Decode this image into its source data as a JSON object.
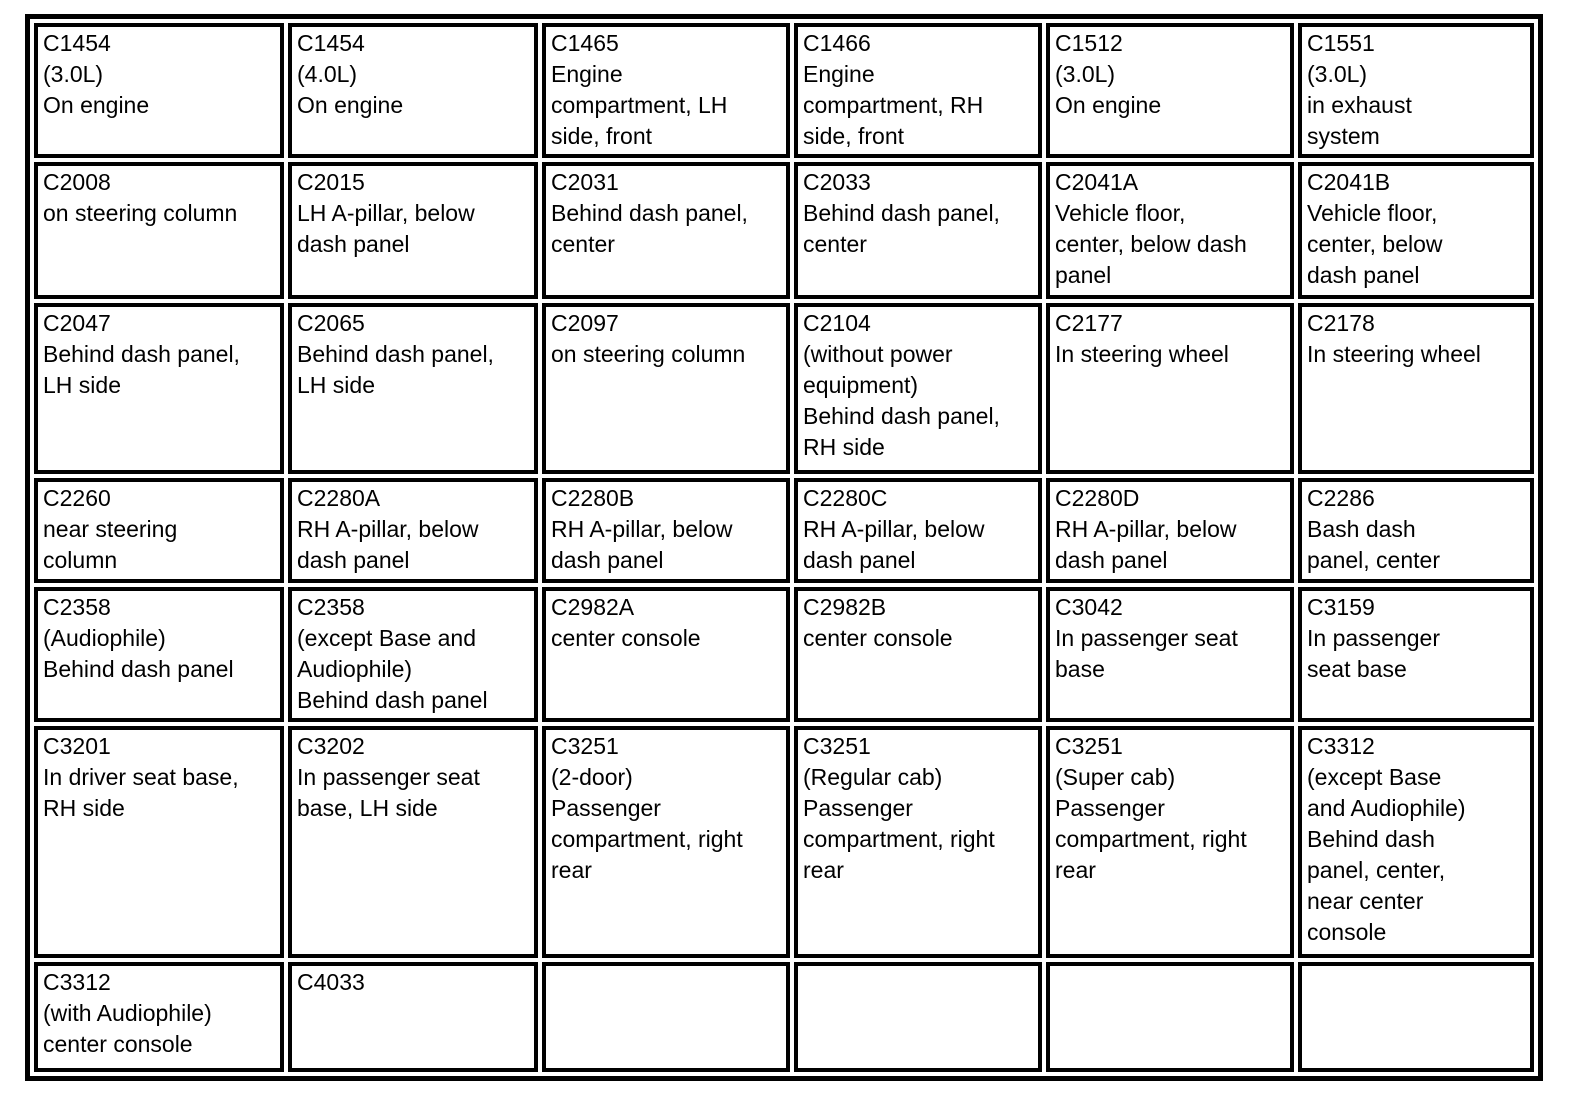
{
  "page": {
    "background_color": "#ffffff",
    "text_color": "#000000",
    "border_color": "#000000",
    "description": "Connector location table"
  },
  "table": {
    "columns": 6,
    "rows": [
      [
        {
          "code": "C1454",
          "details": [
            "(3.0L)",
            "On engine"
          ]
        },
        {
          "code": "C1454",
          "details": [
            "(4.0L)",
            "On engine"
          ]
        },
        {
          "code": "C1465",
          "details": [
            "Engine",
            "compartment, LH",
            "side, front"
          ]
        },
        {
          "code": "C1466",
          "details": [
            "Engine",
            "compartment, RH",
            "side, front"
          ]
        },
        {
          "code": "C1512",
          "details": [
            "(3.0L)",
            "On engine"
          ]
        },
        {
          "code": "C1551",
          "details": [
            "(3.0L)",
            "in exhaust",
            "system"
          ]
        }
      ],
      [
        {
          "code": "C2008",
          "details": [
            "on steering column"
          ]
        },
        {
          "code": "C2015",
          "details": [
            "LH A-pillar, below",
            "dash panel"
          ]
        },
        {
          "code": "C2031",
          "details": [
            "Behind dash panel,",
            "center"
          ]
        },
        {
          "code": "C2033",
          "details": [
            "Behind dash panel,",
            "center"
          ]
        },
        {
          "code": "C2041A",
          "details": [
            "Vehicle floor,",
            "center, below dash",
            "panel"
          ]
        },
        {
          "code": "C2041B",
          "details": [
            "Vehicle floor,",
            "center, below",
            "dash panel"
          ]
        }
      ],
      [
        {
          "code": "C2047",
          "details": [
            "Behind dash panel,",
            "LH side"
          ]
        },
        {
          "code": "C2065",
          "details": [
            "Behind dash panel,",
            "LH side"
          ]
        },
        {
          "code": "C2097",
          "details": [
            "on steering column"
          ]
        },
        {
          "code": "C2104",
          "details": [
            "(without power",
            "equipment)",
            "Behind dash panel,",
            "RH side"
          ]
        },
        {
          "code": "C2177",
          "details": [
            "In steering wheel"
          ]
        },
        {
          "code": "C2178",
          "details": [
            "In steering wheel"
          ]
        }
      ],
      [
        {
          "code": "C2260",
          "details": [
            "near steering",
            "column"
          ]
        },
        {
          "code": "C2280A",
          "details": [
            "RH A-pillar, below",
            "dash panel"
          ]
        },
        {
          "code": "C2280B",
          "details": [
            "RH A-pillar, below",
            "dash panel"
          ]
        },
        {
          "code": "C2280C",
          "details": [
            "RH A-pillar, below",
            "dash panel"
          ]
        },
        {
          "code": "C2280D",
          "details": [
            "RH A-pillar, below",
            "dash panel"
          ]
        },
        {
          "code": "C2286",
          "details": [
            "Bash dash",
            "panel, center"
          ]
        }
      ],
      [
        {
          "code": "C2358",
          "details": [
            "(Audiophile)",
            "Behind dash panel"
          ]
        },
        {
          "code": "C2358",
          "details": [
            "(except Base and",
            "Audiophile)",
            "Behind dash panel"
          ]
        },
        {
          "code": "C2982A",
          "details": [
            "center console"
          ]
        },
        {
          "code": "C2982B",
          "details": [
            "center console"
          ]
        },
        {
          "code": "C3042",
          "details": [
            "In passenger seat",
            "base"
          ]
        },
        {
          "code": "C3159",
          "details": [
            "In passenger",
            "seat base"
          ]
        }
      ],
      [
        {
          "code": "C3201",
          "details": [
            "In driver seat base,",
            "RH side"
          ]
        },
        {
          "code": "C3202",
          "details": [
            "In passenger seat",
            "base, LH side"
          ]
        },
        {
          "code": "C3251",
          "details": [
            "(2-door)",
            "Passenger",
            "compartment, right",
            "rear"
          ]
        },
        {
          "code": "C3251",
          "details": [
            "(Regular cab)",
            "Passenger",
            "compartment, right",
            "rear"
          ]
        },
        {
          "code": "C3251",
          "details": [
            "(Super cab)",
            "Passenger",
            "compartment, right",
            "rear"
          ]
        },
        {
          "code": "C3312",
          "details": [
            "(except Base",
            "and Audiophile)",
            "Behind dash",
            "panel, center,",
            "near center",
            "console"
          ]
        }
      ],
      [
        {
          "code": "C3312",
          "details": [
            "(with Audiophile)",
            "center console"
          ]
        },
        {
          "code": "C4033",
          "details": []
        },
        {
          "code": "",
          "details": []
        },
        {
          "code": "",
          "details": []
        },
        {
          "code": "",
          "details": []
        },
        {
          "code": "",
          "details": []
        }
      ]
    ]
  }
}
